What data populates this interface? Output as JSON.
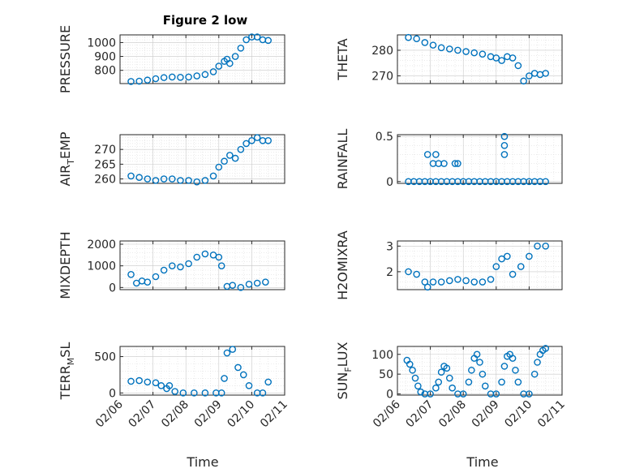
{
  "chart_data": {
    "type": "scatter",
    "title": "Figure 2 low",
    "xlabel": "Time",
    "marker_color": "#0072BD",
    "marker": "open-circle",
    "grid": "major+minor",
    "x_ticks": [
      "02/06",
      "02/07",
      "02/08",
      "02/09",
      "02/10",
      "02/11"
    ],
    "xlim": [
      "02/06",
      "02/11"
    ],
    "panels": [
      {
        "id": "pressure",
        "ylabel": "PRESSURE",
        "ylim": [
          705,
          1055
        ],
        "yticks": [
          800,
          900,
          1000
        ],
        "x": [
          "2019-02-06T08:00",
          "2019-02-06T14:00",
          "2019-02-06T20:00",
          "2019-02-07T02:00",
          "2019-02-07T08:00",
          "2019-02-07T14:00",
          "2019-02-07T20:00",
          "2019-02-08T02:00",
          "2019-02-08T08:00",
          "2019-02-08T14:00",
          "2019-02-08T20:00",
          "2019-02-09T00:00",
          "2019-02-09T04:00",
          "2019-02-09T06:00",
          "2019-02-09T08:00",
          "2019-02-09T12:00",
          "2019-02-09T16:00",
          "2019-02-09T20:00",
          "2019-02-10T00:00",
          "2019-02-10T04:00",
          "2019-02-10T08:00",
          "2019-02-10T12:00"
        ],
        "y": [
          720,
          722,
          730,
          740,
          748,
          752,
          750,
          752,
          760,
          770,
          790,
          830,
          865,
          880,
          850,
          900,
          960,
          1020,
          1040,
          1040,
          1020,
          1015
        ]
      },
      {
        "id": "theta",
        "ylabel": "THETA",
        "ylim": [
          267,
          286
        ],
        "yticks": [
          270,
          280
        ],
        "x": [
          "2019-02-06T08:00",
          "2019-02-06T14:00",
          "2019-02-06T20:00",
          "2019-02-07T02:00",
          "2019-02-07T08:00",
          "2019-02-07T14:00",
          "2019-02-07T20:00",
          "2019-02-08T02:00",
          "2019-02-08T08:00",
          "2019-02-08T14:00",
          "2019-02-08T20:00",
          "2019-02-09T00:00",
          "2019-02-09T04:00",
          "2019-02-09T08:00",
          "2019-02-09T12:00",
          "2019-02-09T16:00",
          "2019-02-09T20:00",
          "2019-02-10T00:00",
          "2019-02-10T04:00",
          "2019-02-10T08:00",
          "2019-02-10T12:00"
        ],
        "y": [
          285,
          284.5,
          283,
          282,
          281,
          280.5,
          280,
          279.5,
          279,
          278.5,
          277.5,
          277,
          276,
          277.5,
          277,
          274,
          268,
          270,
          271,
          270.5,
          271
        ]
      },
      {
        "id": "air_temp",
        "ylabel": "AIR_TEMP",
        "ylabel_main": "AIR",
        "ylabel_sub": "T",
        "ylabel_rest": "EMP",
        "ylim": [
          258.5,
          275
        ],
        "yticks": [
          260,
          265,
          270
        ],
        "x": [
          "2019-02-06T08:00",
          "2019-02-06T14:00",
          "2019-02-06T20:00",
          "2019-02-07T02:00",
          "2019-02-07T08:00",
          "2019-02-07T14:00",
          "2019-02-07T20:00",
          "2019-02-08T02:00",
          "2019-02-08T08:00",
          "2019-02-08T14:00",
          "2019-02-08T20:00",
          "2019-02-09T00:00",
          "2019-02-09T04:00",
          "2019-02-09T08:00",
          "2019-02-09T12:00",
          "2019-02-09T16:00",
          "2019-02-09T20:00",
          "2019-02-10T00:00",
          "2019-02-10T04:00",
          "2019-02-10T08:00",
          "2019-02-10T12:00"
        ],
        "y": [
          261,
          260.5,
          260,
          259.5,
          260,
          260,
          259.5,
          259.5,
          259,
          259.5,
          261,
          264,
          266,
          268,
          267,
          270,
          272,
          273,
          274,
          273,
          273
        ]
      },
      {
        "id": "rainfall",
        "ylabel": "RAINFALL",
        "ylim": [
          -0.02,
          0.52
        ],
        "yticks": [
          0,
          0.5
        ],
        "x": [
          "2019-02-06T08:00",
          "2019-02-06T12:00",
          "2019-02-06T16:00",
          "2019-02-06T20:00",
          "2019-02-07T00:00",
          "2019-02-07T04:00",
          "2019-02-07T08:00",
          "2019-02-07T12:00",
          "2019-02-07T16:00",
          "2019-02-07T20:00",
          "2019-02-08T00:00",
          "2019-02-08T04:00",
          "2019-02-08T08:00",
          "2019-02-08T12:00",
          "2019-02-08T16:00",
          "2019-02-08T20:00",
          "2019-02-09T00:00",
          "2019-02-09T04:00",
          "2019-02-09T08:00",
          "2019-02-09T12:00",
          "2019-02-09T16:00",
          "2019-02-09T20:00",
          "2019-02-10T00:00",
          "2019-02-10T04:00",
          "2019-02-10T08:00",
          "2019-02-10T12:00",
          "2019-02-06T22:00",
          "2019-02-07T02:00",
          "2019-02-07T04:00",
          "2019-02-07T06:00",
          "2019-02-07T10:00",
          "2019-02-07T18:00",
          "2019-02-07T20:00",
          "2019-02-09T06:00",
          "2019-02-09T06:00",
          "2019-02-09T06:00"
        ],
        "y": [
          0,
          0,
          0,
          0,
          0,
          0,
          0,
          0,
          0,
          0,
          0,
          0,
          0,
          0,
          0,
          0,
          0,
          0,
          0,
          0,
          0,
          0,
          0,
          0,
          0,
          0,
          0.3,
          0.2,
          0.3,
          0.2,
          0.2,
          0.2,
          0.2,
          0.3,
          0.4,
          0.5
        ]
      },
      {
        "id": "mixdepth",
        "ylabel": "MIXDEPTH",
        "ylim": [
          -100,
          2150
        ],
        "yticks": [
          0,
          1000,
          2000
        ],
        "x": [
          "2019-02-06T08:00",
          "2019-02-06T12:00",
          "2019-02-06T16:00",
          "2019-02-06T20:00",
          "2019-02-07T02:00",
          "2019-02-07T08:00",
          "2019-02-07T14:00",
          "2019-02-07T20:00",
          "2019-02-08T02:00",
          "2019-02-08T08:00",
          "2019-02-08T14:00",
          "2019-02-08T20:00",
          "2019-02-09T00:00",
          "2019-02-09T02:00",
          "2019-02-09T06:00",
          "2019-02-09T10:00",
          "2019-02-09T16:00",
          "2019-02-09T22:00",
          "2019-02-10T04:00",
          "2019-02-10T10:00"
        ],
        "y": [
          600,
          200,
          300,
          250,
          500,
          800,
          1000,
          950,
          1100,
          1400,
          1550,
          1500,
          1400,
          1000,
          50,
          100,
          0,
          150,
          200,
          250
        ]
      },
      {
        "id": "h2omixra",
        "ylabel": "H2OMIXRA",
        "ylim": [
          1.3,
          3.2
        ],
        "yticks": [
          2,
          3
        ],
        "x": [
          "2019-02-06T08:00",
          "2019-02-06T14:00",
          "2019-02-06T20:00",
          "2019-02-06T22:00",
          "2019-02-07T02:00",
          "2019-02-07T08:00",
          "2019-02-07T14:00",
          "2019-02-07T20:00",
          "2019-02-08T02:00",
          "2019-02-08T08:00",
          "2019-02-08T14:00",
          "2019-02-08T20:00",
          "2019-02-09T00:00",
          "2019-02-09T04:00",
          "2019-02-09T08:00",
          "2019-02-09T12:00",
          "2019-02-09T18:00",
          "2019-02-10T00:00",
          "2019-02-10T06:00",
          "2019-02-10T12:00"
        ],
        "y": [
          2.0,
          1.9,
          1.6,
          1.4,
          1.6,
          1.6,
          1.65,
          1.7,
          1.65,
          1.6,
          1.6,
          1.7,
          2.2,
          2.5,
          2.6,
          1.9,
          2.2,
          2.6,
          3.0,
          3.0
        ]
      },
      {
        "id": "terr_msl",
        "ylabel": "TERR_MSL",
        "ylabel_main": "TERR",
        "ylabel_sub": "M",
        "ylabel_rest": "SL",
        "ylim": [
          -30,
          640
        ],
        "yticks": [
          0,
          500
        ],
        "x": [
          "2019-02-06T08:00",
          "2019-02-06T14:00",
          "2019-02-06T20:00",
          "2019-02-07T02:00",
          "2019-02-07T06:00",
          "2019-02-07T10:00",
          "2019-02-07T12:00",
          "2019-02-07T16:00",
          "2019-02-07T22:00",
          "2019-02-08T06:00",
          "2019-02-08T14:00",
          "2019-02-08T22:00",
          "2019-02-09T02:00",
          "2019-02-09T04:00",
          "2019-02-09T06:00",
          "2019-02-09T10:00",
          "2019-02-09T14:00",
          "2019-02-09T18:00",
          "2019-02-09T22:00",
          "2019-02-10T04:00",
          "2019-02-10T08:00",
          "2019-02-10T12:00"
        ],
        "y": [
          160,
          170,
          150,
          140,
          100,
          60,
          100,
          20,
          0,
          0,
          0,
          0,
          0,
          200,
          550,
          600,
          350,
          250,
          100,
          0,
          0,
          150
        ]
      },
      {
        "id": "sun_flux",
        "ylabel": "SUN_FLUX",
        "ylabel_main": "SUN",
        "ylabel_sub": "F",
        "ylabel_rest": "LUX",
        "ylim": [
          -3,
          120
        ],
        "yticks": [
          0,
          50,
          100
        ],
        "x": [
          "2019-02-06T07:00",
          "2019-02-06T09:00",
          "2019-02-06T11:00",
          "2019-02-06T13:00",
          "2019-02-06T15:00",
          "2019-02-06T17:00",
          "2019-02-06T20:00",
          "2019-02-07T00:00",
          "2019-02-07T04:00",
          "2019-02-07T06:00",
          "2019-02-07T08:00",
          "2019-02-07T10:00",
          "2019-02-07T12:00",
          "2019-02-07T14:00",
          "2019-02-07T16:00",
          "2019-02-07T20:00",
          "2019-02-08T00:00",
          "2019-02-08T04:00",
          "2019-02-08T06:00",
          "2019-02-08T08:00",
          "2019-02-08T10:00",
          "2019-02-08T12:00",
          "2019-02-08T14:00",
          "2019-02-08T16:00",
          "2019-02-08T20:00",
          "2019-02-09T00:00",
          "2019-02-09T04:00",
          "2019-02-09T06:00",
          "2019-02-09T08:00",
          "2019-02-09T10:00",
          "2019-02-09T12:00",
          "2019-02-09T14:00",
          "2019-02-09T16:00",
          "2019-02-09T20:00",
          "2019-02-10T00:00",
          "2019-02-10T04:00",
          "2019-02-10T06:00",
          "2019-02-10T08:00",
          "2019-02-10T10:00",
          "2019-02-10T12:00"
        ],
        "y": [
          85,
          75,
          60,
          40,
          20,
          5,
          0,
          0,
          15,
          30,
          55,
          70,
          65,
          40,
          15,
          0,
          0,
          30,
          60,
          90,
          100,
          80,
          50,
          20,
          0,
          0,
          30,
          70,
          95,
          100,
          90,
          60,
          30,
          0,
          0,
          50,
          80,
          100,
          110,
          115
        ]
      }
    ]
  }
}
